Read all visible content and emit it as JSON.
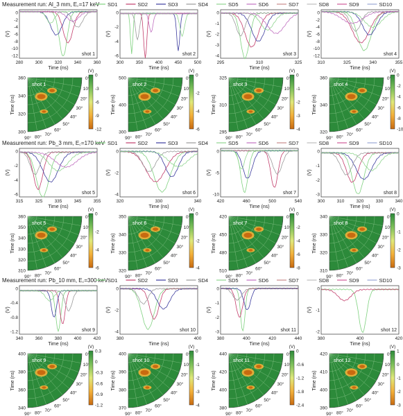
{
  "sd_colors": [
    "#7fd17f",
    "#c23c6a",
    "#3b3b9e",
    "#9a9a9a",
    "#8fd48f",
    "#c06fc0",
    "#c98a8a",
    "#bdbdbd",
    "#d05a9a",
    "#9aa7d6"
  ],
  "heatmap_colors": [
    "#2c8a3a",
    "#7cc05a",
    "#dfe87a",
    "#f2b03a",
    "#c86a10"
  ],
  "chart_data": [
    {
      "type": "line",
      "group_title": "Measurement run: Al_3 mm, E꜀=17 keV",
      "legend": [
        "SD1",
        "SD2",
        "SD3",
        "SD4",
        "SD5",
        "SD6",
        "SD7",
        "SD8",
        "SD9",
        "SD10"
      ],
      "panels": [
        {
          "label": "shot 1",
          "xlabel": "Time (ns)",
          "ylabel": "(V)",
          "xlim": [
            280,
            360
          ],
          "xticks": [
            "280",
            "300",
            "320",
            "340",
            "360"
          ],
          "ylim": [
            -12,
            0.5
          ],
          "yticks": [
            "0",
            "-2",
            "-4",
            "-6",
            "-8",
            "-10",
            "-12"
          ],
          "pulses": [
            [
              325,
              -11.5,
              4
            ],
            [
              330,
              -8,
              5
            ],
            [
              318,
              -6,
              6
            ],
            [
              340,
              -4,
              5
            ],
            [
              312,
              -3,
              4
            ],
            [
              335,
              -2.5,
              6
            ]
          ]
        },
        {
          "label": "shot 2",
          "xlabel": "Time (ns)",
          "ylabel": "(V)",
          "xlim": [
            300,
            500
          ],
          "xticks": [
            "300",
            "350",
            "400",
            "450",
            "500"
          ],
          "ylim": [
            -6,
            0.5
          ],
          "yticks": [
            "0",
            "-2",
            "-4",
            "-6"
          ],
          "pulses": [
            [
              330,
              -5.5,
              3
            ],
            [
              365,
              -6,
              4
            ],
            [
              450,
              -5,
              4
            ],
            [
              345,
              -3.5,
              5
            ],
            [
              460,
              -3,
              6
            ],
            [
              380,
              -2.5,
              5
            ]
          ]
        },
        {
          "label": "shot 3",
          "xlabel": "Time (ns)",
          "ylabel": "(V)",
          "xlim": [
            295,
            330
          ],
          "xticks": [
            "295",
            "310",
            "325"
          ],
          "ylim": [
            -4,
            0.3
          ],
          "yticks": [
            "0",
            "-1",
            "-2",
            "-3",
            "-4"
          ],
          "pulses": [
            [
              306,
              -4,
              2
            ],
            [
              309,
              -3,
              3
            ],
            [
              312,
              -2.5,
              3
            ],
            [
              304,
              -2,
              2
            ],
            [
              316,
              -1.5,
              3
            ],
            [
              320,
              -1.8,
              4
            ]
          ]
        },
        {
          "label": "shot 4",
          "xlabel": "Time (ns)",
          "ylabel": "(V)",
          "xlim": [
            310,
            355
          ],
          "xticks": [
            "310",
            "325",
            "340",
            "355"
          ],
          "ylim": [
            -12,
            0.5
          ],
          "yticks": [
            "0",
            "-2",
            "-4",
            "-6",
            "-8",
            "-10",
            "-12"
          ],
          "pulses": [
            [
              335,
              -10,
              4
            ],
            [
              333,
              -8,
              5
            ],
            [
              338,
              -6,
              4
            ],
            [
              330,
              -5,
              3
            ],
            [
              340,
              -4,
              5
            ],
            [
              328,
              -3,
              6
            ]
          ]
        }
      ],
      "maps": [
        {
          "label": "shot 1",
          "ylabel": "Time (ns)",
          "yticks": [
            "360",
            "340",
            "320",
            "300"
          ],
          "cbar_ticks": [
            "0",
            "-3",
            "-6",
            "-9",
            "-12"
          ]
        },
        {
          "label": "shot 2",
          "ylabel": "Time (ns)",
          "yticks": [
            "500",
            "400",
            "300"
          ],
          "cbar_ticks": [
            "0",
            "-2",
            "-4",
            "-6"
          ]
        },
        {
          "label": "shot 3",
          "ylabel": "Time (ns)",
          "yticks": [
            "325",
            "310",
            "295"
          ],
          "cbar_ticks": [
            "0",
            "-1",
            "-2",
            "-3",
            "-4"
          ]
        },
        {
          "label": "shot 4",
          "ylabel": "Time (ns)",
          "yticks": [
            "360",
            "340",
            "320"
          ],
          "cbar_ticks": [
            "0",
            "-2",
            "-4",
            "-6",
            "-8",
            "-10"
          ]
        }
      ]
    },
    {
      "type": "line",
      "group_title": "Measurement run: Pb_3 mm, E꜀=170 keV",
      "legend": [
        "SD1",
        "SD2",
        "SD3",
        "SD4",
        "SD5",
        "SD6",
        "SD7",
        "SD8",
        "SD9",
        "SD10"
      ],
      "panels": [
        {
          "label": "shot 5",
          "xlabel": "Time (ns)",
          "ylabel": "(V)",
          "xlim": [
            310,
            360
          ],
          "xticks": [
            "315",
            "325",
            "335",
            "345",
            "355"
          ],
          "ylim": [
            -6,
            0.5
          ],
          "yticks": [
            "0",
            "-2",
            "-4",
            "-6"
          ],
          "pulses": [
            [
              325,
              -6,
              4
            ],
            [
              322,
              -5,
              3
            ],
            [
              330,
              -4,
              5
            ],
            [
              320,
              -3,
              3
            ],
            [
              335,
              -2.5,
              6
            ],
            [
              340,
              -2,
              7
            ]
          ]
        },
        {
          "label": "shot 6",
          "xlabel": "Time (ns)",
          "ylabel": "(V)",
          "xlim": [
            318,
            342
          ],
          "xticks": [
            "320",
            "330",
            "340"
          ],
          "ylim": [
            -4.5,
            0.3
          ],
          "yticks": [
            "0",
            "-2",
            "-4"
          ],
          "pulses": [
            [
              331,
              -4,
              2.5
            ],
            [
              329,
              -3,
              3
            ],
            [
              334,
              -2.5,
              2
            ],
            [
              327,
              -2,
              2
            ],
            [
              336,
              -1.5,
              3
            ]
          ]
        },
        {
          "label": "shot 7",
          "xlabel": "Time (ns)",
          "ylabel": "(V)",
          "xlim": [
            410,
            540
          ],
          "xticks": [
            "420",
            "460",
            "500",
            "540"
          ],
          "ylim": [
            -10,
            0.5
          ],
          "yticks": [
            "0",
            "-5",
            "-10"
          ],
          "pulses": [
            [
              450,
              -9,
              6
            ],
            [
              500,
              -8,
              6
            ],
            [
              455,
              -6,
              8
            ],
            [
              505,
              -5,
              8
            ],
            [
              445,
              -4,
              5
            ]
          ]
        },
        {
          "label": "shot 8",
          "xlabel": "Time (ns)",
          "ylabel": "(V)",
          "xlim": [
            300,
            340
          ],
          "xticks": [
            "300",
            "310",
            "320",
            "330",
            "340"
          ],
          "ylim": [
            -3,
            0.3
          ],
          "yticks": [
            "0",
            "-1",
            "-2",
            "-3"
          ],
          "pulses": [
            [
              319,
              -2.8,
              3
            ],
            [
              316,
              -2,
              3
            ],
            [
              322,
              -1.8,
              4
            ],
            [
              313,
              -1.5,
              3
            ],
            [
              326,
              -1.2,
              4
            ]
          ]
        }
      ],
      "maps": [
        {
          "label": "shot 5",
          "ylabel": "Time (ns)",
          "yticks": [
            "360",
            "350",
            "340",
            "330",
            "320",
            "310"
          ],
          "cbar_ticks": [
            "0",
            "-2",
            "-4",
            "-6"
          ]
        },
        {
          "label": "shot 6",
          "ylabel": "Time (ns)",
          "yticks": [
            "350",
            "340",
            "330",
            "320"
          ],
          "cbar_ticks": [
            "0",
            "-2",
            "-4"
          ]
        },
        {
          "label": "shot 7",
          "ylabel": "Time (ns)",
          "yticks": [
            "420",
            "450",
            "480",
            "510"
          ],
          "cbar_ticks": [
            "0",
            "-2",
            "-4",
            "-6",
            "-8"
          ]
        },
        {
          "label": "shot 8",
          "ylabel": "Time (ns)",
          "yticks": [
            "340",
            "330",
            "320",
            "310"
          ],
          "cbar_ticks": [
            "0",
            "-1",
            "-2",
            "-3"
          ]
        }
      ]
    },
    {
      "type": "line",
      "group_title": "Measurement run: Pb_10 mm, E꜀=300 keV",
      "legend": [
        "SD1",
        "SD2",
        "SD3",
        "SD4",
        "SD5",
        "SD6",
        "SD7",
        "SD8",
        "SD9",
        "SD10"
      ],
      "panels": [
        {
          "label": "shot 9",
          "xlabel": "Time (ns)",
          "ylabel": "(V)",
          "xlim": [
            335,
            425
          ],
          "xticks": [
            "340",
            "360",
            "380",
            "400",
            "420"
          ],
          "ylim": [
            -1.3,
            0.15
          ],
          "yticks": [
            "0",
            "-0.4",
            "-0.8",
            "-1.2"
          ],
          "pulses": [
            [
              380,
              -1.2,
              3
            ],
            [
              385,
              -1,
              3
            ],
            [
              375,
              -0.8,
              3
            ],
            [
              392,
              -0.6,
              4
            ],
            [
              370,
              -0.3,
              5
            ]
          ]
        },
        {
          "label": "shot 10",
          "xlabel": "Time (ns)",
          "ylabel": "(V)",
          "xlim": [
            370,
            420
          ],
          "xticks": [
            "380",
            "400"
          ],
          "ylim": [
            -4.5,
            0.3
          ],
          "yticks": [
            "0",
            "-2",
            "-4"
          ],
          "pulses": [
            [
              388,
              -4,
              4
            ],
            [
              392,
              -3,
              3
            ],
            [
              398,
              -2,
              4
            ],
            [
              385,
              -1.5,
              3
            ]
          ]
        },
        {
          "label": "shot 11",
          "xlabel": "Time (ns)",
          "ylabel": "(V)",
          "xlim": [
            380,
            450
          ],
          "xticks": [
            "380",
            "400",
            "420",
            "440"
          ],
          "ylim": [
            -3.2,
            0.2
          ],
          "yticks": [
            "0",
            "-1",
            "-2",
            "-3"
          ],
          "pulses": [
            [
              400,
              -3,
              2
            ],
            [
              397,
              -2,
              3
            ],
            [
              404,
              -1.5,
              3
            ],
            [
              395,
              -0.8,
              4
            ]
          ]
        },
        {
          "label": "shot 12",
          "xlabel": "Time (ns)",
          "ylabel": "(V)",
          "xlim": [
            370,
            430
          ],
          "xticks": [
            "380",
            "400",
            "420"
          ],
          "ylim": [
            -2.4,
            0.2
          ],
          "yticks": [
            "0",
            "-1",
            "-2"
          ],
          "pulses": [
            [
              402,
              -2.3,
              3
            ],
            [
              388,
              -0.6,
              5
            ]
          ]
        }
      ],
      "maps": [
        {
          "label": "shot 9",
          "ylabel": "Time (ns)",
          "yticks": [
            "400",
            "380",
            "360",
            "340"
          ],
          "cbar_ticks": [
            "0.3",
            "0",
            "-0.3",
            "-0.6",
            "-0.9",
            "-1.2"
          ]
        },
        {
          "label": "shot 10",
          "ylabel": "Time (ns)",
          "yticks": [
            "400",
            "390",
            "380",
            "370"
          ],
          "cbar_ticks": [
            "0",
            "-1",
            "-2",
            "-3",
            "-4"
          ]
        },
        {
          "label": "shot 11",
          "ylabel": "Time (ns)",
          "yticks": [
            "440",
            "420",
            "400",
            "380"
          ],
          "cbar_ticks": [
            "0",
            "-0.6",
            "-1.2",
            "-1.8",
            "-2.4"
          ]
        },
        {
          "label": "shot 12",
          "ylabel": "Time (ns)",
          "yticks": [
            "420",
            "410",
            "400",
            "390"
          ],
          "cbar_ticks": [
            "1",
            "0",
            "-1",
            "-2",
            "-3"
          ]
        }
      ]
    }
  ],
  "polar_angles": [
    "0°",
    "10°",
    "20°",
    "30°",
    "40°",
    "50°",
    "60°",
    "70°",
    "80°",
    "90°"
  ],
  "units_label": "(V)"
}
